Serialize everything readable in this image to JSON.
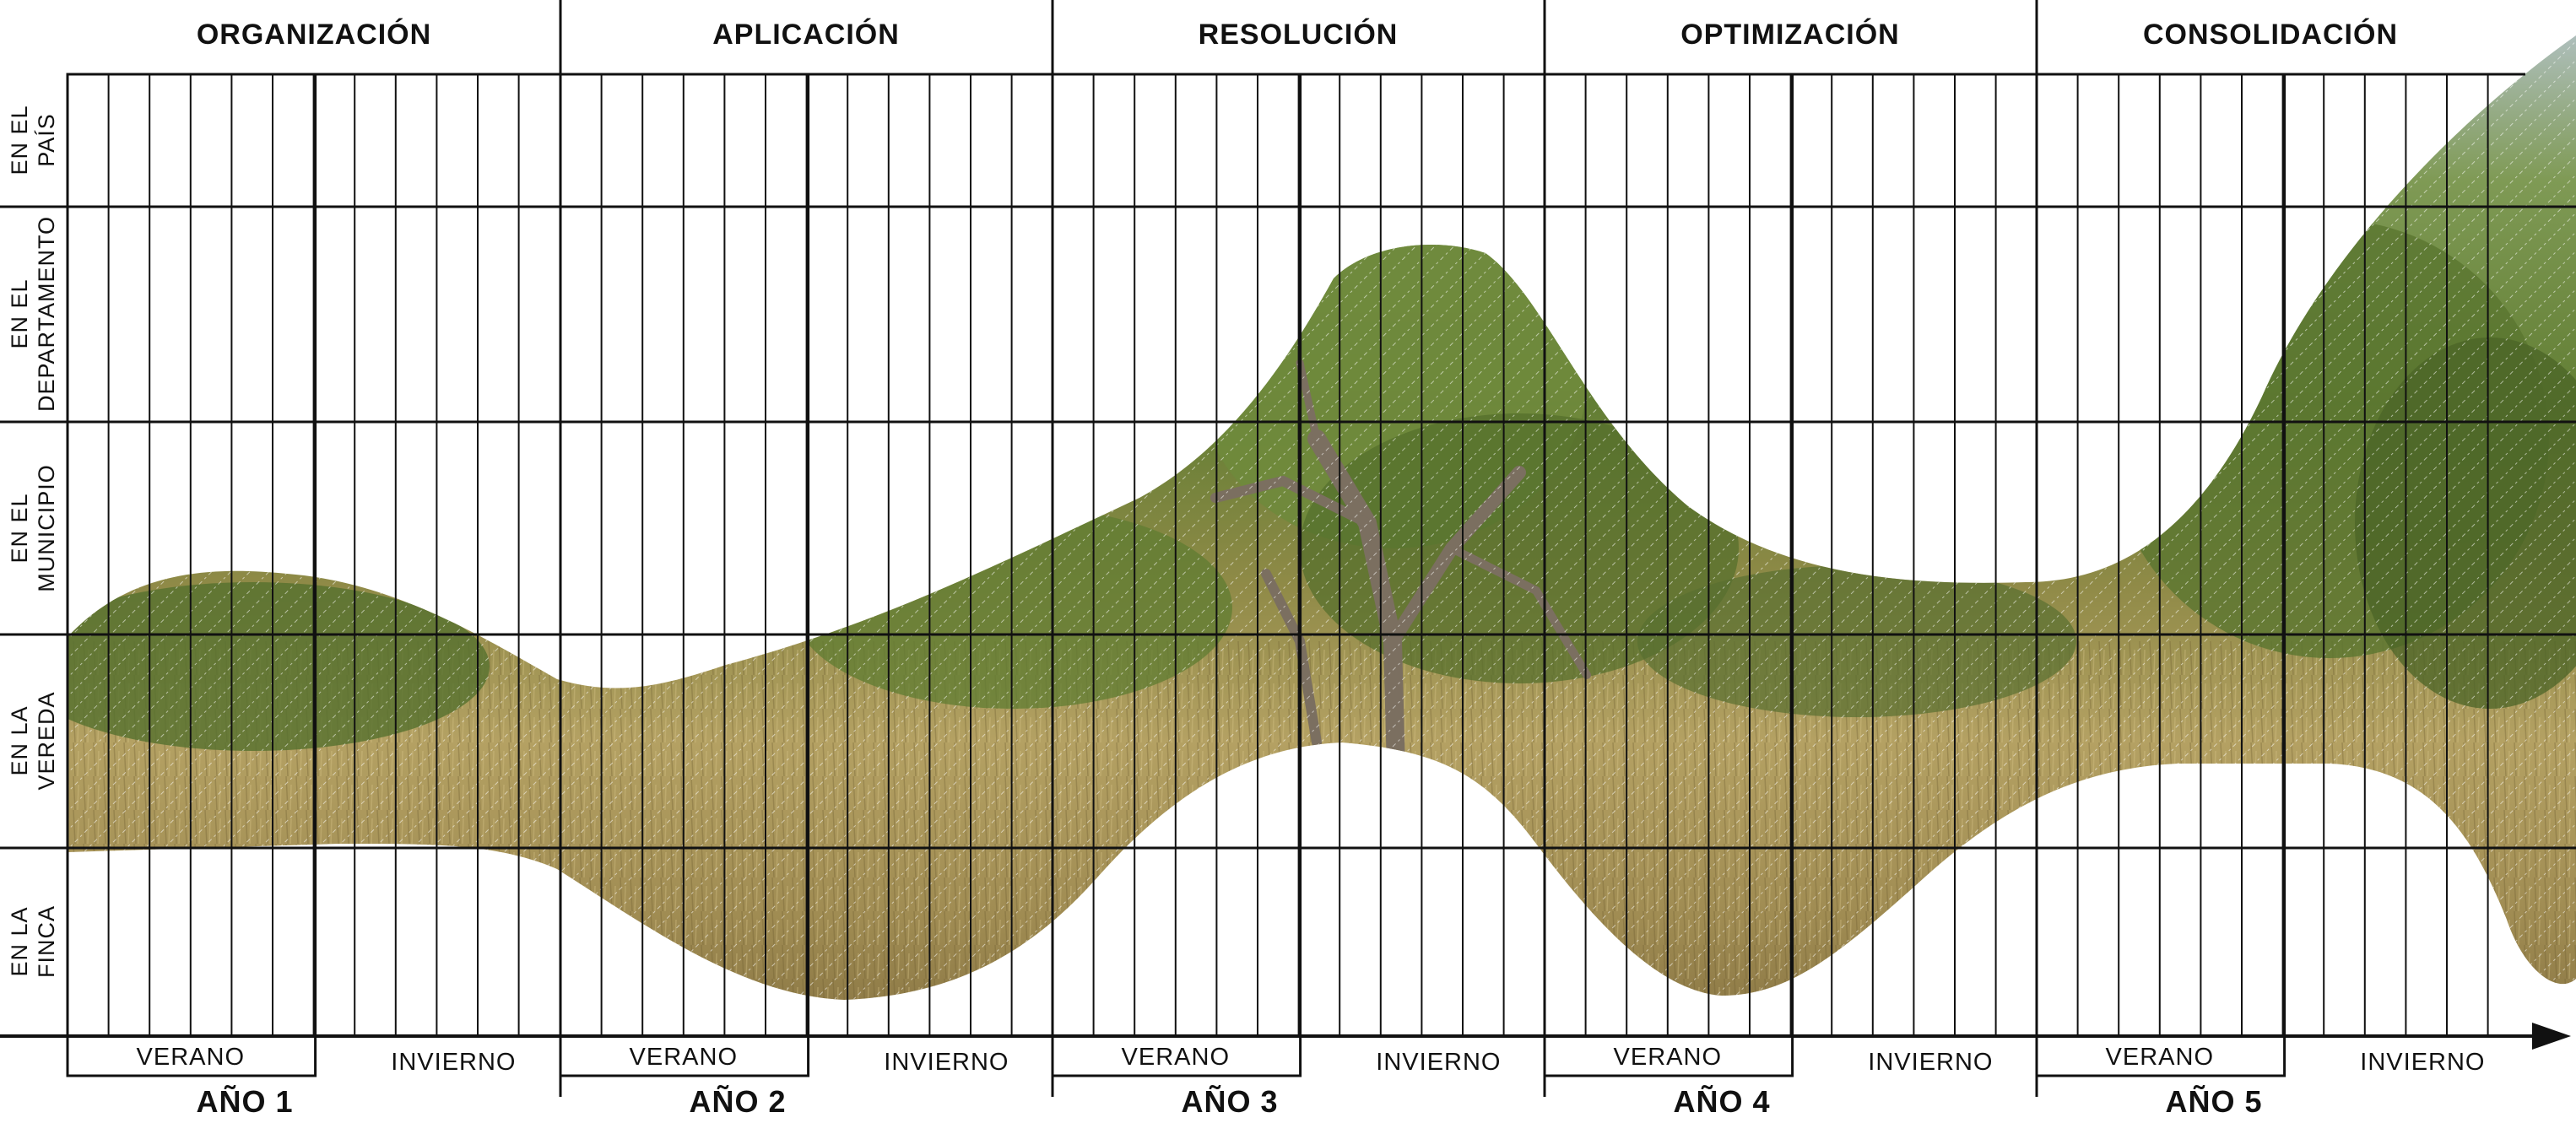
{
  "phases": [
    {
      "label": "ORGANIZACIÓN"
    },
    {
      "label": "APLICACIÓN"
    },
    {
      "label": "RESOLUCIÓN"
    },
    {
      "label": "OPTIMIZACIÓN"
    },
    {
      "label": "CONSOLIDACIÓN"
    }
  ],
  "levels": [
    {
      "line1": "EN EL",
      "line2": "PAÍS"
    },
    {
      "line1": "EN EL",
      "line2": "DEPARTAMENTO"
    },
    {
      "line1": "EN EL",
      "line2": "MUNICIPIO"
    },
    {
      "line1": "EN LA",
      "line2": "VEREDA"
    },
    {
      "line1": "EN LA",
      "line2": "FINCA"
    }
  ],
  "years": [
    {
      "label": "AÑO 1",
      "summer": "VERANO",
      "winter": "INVIERNO"
    },
    {
      "label": "AÑO 2",
      "summer": "VERANO",
      "winter": "INVIERNO"
    },
    {
      "label": "AÑO 3",
      "summer": "VERANO",
      "winter": "INVIERNO"
    },
    {
      "label": "AÑO 4",
      "summer": "VERANO",
      "winter": "INVIERNO"
    },
    {
      "label": "AÑO 5",
      "summer": "VERANO",
      "winter": "INVIERNO"
    }
  ],
  "colors": {
    "grid": "#111111",
    "sky": "#b7c7d6",
    "grass_light": "#c9b479",
    "grass_dark": "#7a6a3a",
    "foliage": "#6f8a3c",
    "foliage_dark": "#3f5a22",
    "trunk": "#7b6f60"
  },
  "icons": {
    "axis_arrow": "arrow-right-icon"
  }
}
